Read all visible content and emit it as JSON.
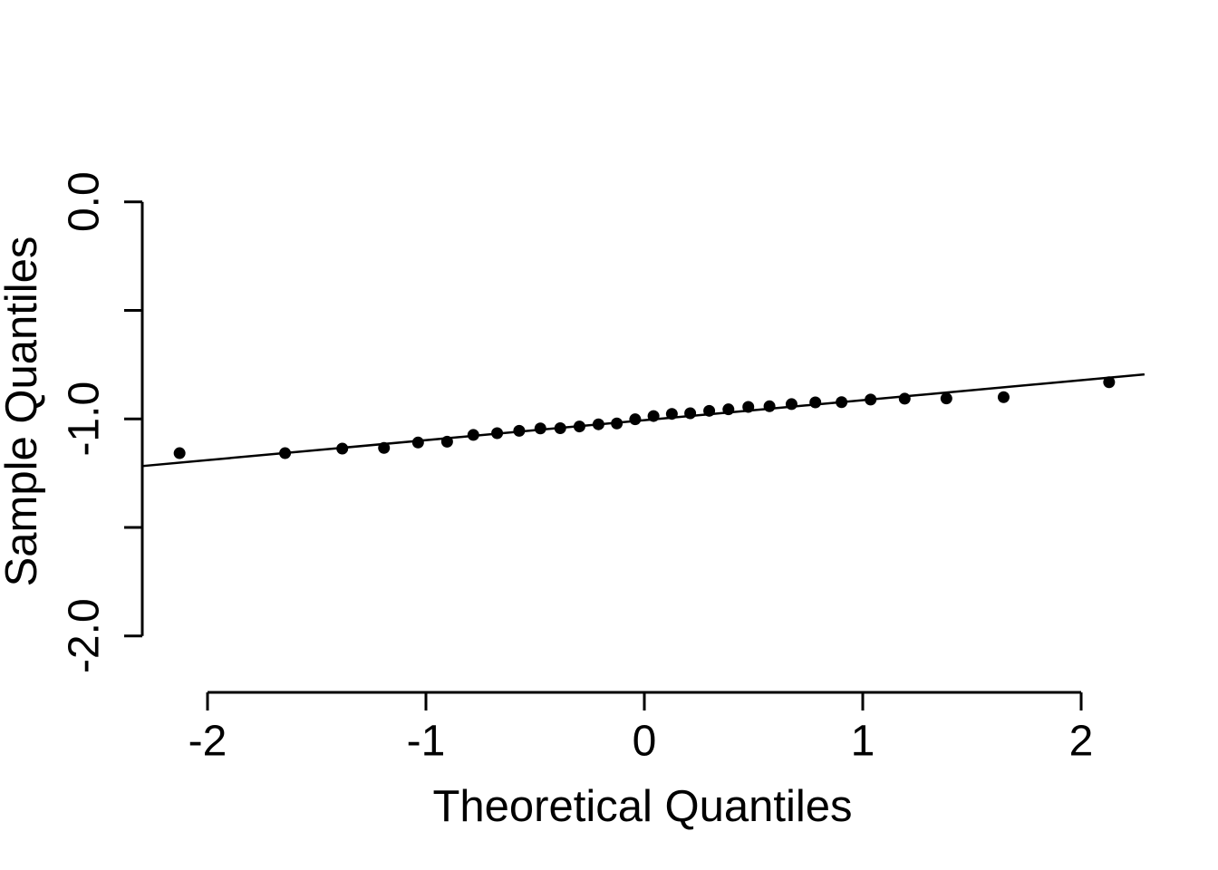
{
  "chart_data": {
    "type": "scatter",
    "subtype": "normal-qq-plot",
    "title": "",
    "xlabel": "Theoretical Quantiles",
    "ylabel": "Sample Quantiles",
    "xlim": [
      -2.3,
      2.3
    ],
    "ylim": [
      -2.05,
      0.0
    ],
    "grid": false,
    "legend_position": "none",
    "x_ticks": {
      "values": [
        -2,
        -1,
        0,
        1,
        2
      ],
      "labels": [
        "-2",
        "-1",
        "0",
        "1",
        "2"
      ]
    },
    "y_ticks": {
      "values": [
        0.0,
        -0.5,
        -1.0,
        -1.5,
        -2.0
      ],
      "labels": [
        "0.0",
        "",
        "-1.0",
        "",
        "-2.0"
      ]
    },
    "points": [
      [
        -2.128,
        -1.158
      ],
      [
        -1.645,
        -1.158
      ],
      [
        -1.383,
        -1.137
      ],
      [
        -1.192,
        -1.134
      ],
      [
        -1.036,
        -1.109
      ],
      [
        -0.903,
        -1.105
      ],
      [
        -0.783,
        -1.074
      ],
      [
        -0.674,
        -1.066
      ],
      [
        -0.573,
        -1.055
      ],
      [
        -0.476,
        -1.044
      ],
      [
        -0.385,
        -1.043
      ],
      [
        -0.297,
        -1.035
      ],
      [
        -0.21,
        -1.025
      ],
      [
        -0.126,
        -1.021
      ],
      [
        -0.042,
        -1.002
      ],
      [
        0.042,
        -0.987
      ],
      [
        0.126,
        -0.977
      ],
      [
        0.21,
        -0.974
      ],
      [
        0.297,
        -0.963
      ],
      [
        0.385,
        -0.956
      ],
      [
        0.476,
        -0.945
      ],
      [
        0.573,
        -0.942
      ],
      [
        0.674,
        -0.932
      ],
      [
        0.783,
        -0.924
      ],
      [
        0.903,
        -0.923
      ],
      [
        1.036,
        -0.911
      ],
      [
        1.192,
        -0.907
      ],
      [
        1.383,
        -0.906
      ],
      [
        1.645,
        -0.9
      ],
      [
        2.128,
        -0.831
      ]
    ],
    "reference_line": {
      "intercept": -1.006,
      "slope": 0.092,
      "x_start": -2.3,
      "x_end": 2.29
    },
    "marker": {
      "shape": "filled-circle",
      "color": "#000000"
    },
    "colors": {
      "background": "#ffffff",
      "axis": "#000000",
      "points": "#000000",
      "reference_line": "#000000",
      "text": "#000000"
    }
  }
}
